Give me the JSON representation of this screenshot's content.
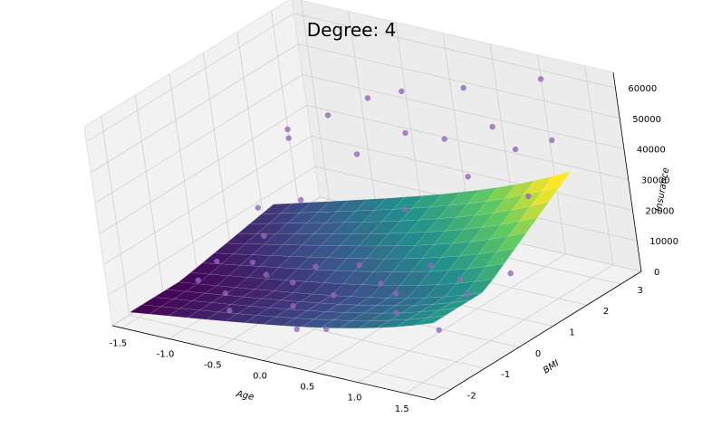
{
  "chart_data": {
    "type": "scatter",
    "subtype": "3d-scatter-with-polynomial-surface",
    "title": "Degree: 4",
    "xlabel": "Age",
    "ylabel": "BMI",
    "zlabel": "Insurance",
    "xlim": [
      -1.6,
      1.8
    ],
    "ylim": [
      -2.5,
      3.6
    ],
    "zlim": [
      0,
      65000
    ],
    "x_ticks": [
      "-1.5",
      "-1.0",
      "-0.5",
      "0.0",
      "0.5",
      "1.0",
      "1.5"
    ],
    "y_ticks": [
      "-2",
      "-1",
      "0",
      "1",
      "2",
      "3"
    ],
    "z_ticks": [
      "0",
      "10000",
      "20000",
      "30000",
      "40000",
      "50000",
      "60000"
    ],
    "x_tick_values": [
      -1.5,
      -1.0,
      -0.5,
      0.0,
      0.5,
      1.0,
      1.5
    ],
    "y_tick_values": [
      -2,
      -1,
      0,
      1,
      2,
      3
    ],
    "z_tick_values": [
      0,
      10000,
      20000,
      30000,
      40000,
      50000,
      60000
    ],
    "grid": true,
    "surface_colormap": "viridis",
    "point_color": "#9467bd",
    "points": [
      [
        -1.45,
        0.2,
        3500
      ],
      [
        -1.4,
        -0.5,
        2500
      ],
      [
        -1.3,
        1.2,
        6000
      ],
      [
        -1.2,
        0.9,
        18000
      ],
      [
        -1.2,
        2.0,
        36000
      ],
      [
        -1.1,
        0.3,
        5000
      ],
      [
        -1.0,
        1.5,
        38000
      ],
      [
        -1.0,
        -0.8,
        3200
      ],
      [
        -0.9,
        2.4,
        40000
      ],
      [
        -0.85,
        0.0,
        4800
      ],
      [
        -0.8,
        1.1,
        22000
      ],
      [
        -0.7,
        -1.5,
        4500
      ],
      [
        -0.6,
        2.8,
        45000
      ],
      [
        -0.5,
        0.5,
        6500
      ],
      [
        -0.45,
        -0.3,
        7200
      ],
      [
        -0.4,
        1.8,
        35000
      ],
      [
        -0.3,
        3.0,
        48000
      ],
      [
        -0.2,
        -1.0,
        6100
      ],
      [
        -0.1,
        0.7,
        8500
      ],
      [
        0.0,
        2.2,
        42000
      ],
      [
        0.1,
        -0.6,
        9000
      ],
      [
        0.2,
        1.4,
        24000
      ],
      [
        0.3,
        3.2,
        52000
      ],
      [
        0.35,
        0.1,
        9800
      ],
      [
        0.45,
        -1.8,
        8700
      ],
      [
        0.5,
        2.0,
        45000
      ],
      [
        0.6,
        0.9,
        12000
      ],
      [
        0.7,
        -0.4,
        12500
      ],
      [
        0.8,
        2.6,
        47000
      ],
      [
        0.9,
        1.5,
        39000
      ],
      [
        1.0,
        -1.2,
        13800
      ],
      [
        1.1,
        0.4,
        14500
      ],
      [
        1.2,
        3.1,
        62000
      ],
      [
        1.3,
        1.9,
        48000
      ],
      [
        1.4,
        -0.2,
        15800
      ],
      [
        1.5,
        0.8,
        16500
      ],
      [
        1.55,
        2.3,
        50000
      ],
      [
        1.6,
        -1.6,
        15200
      ],
      [
        1.65,
        1.2,
        40000
      ],
      [
        0.25,
        -2.1,
        9300
      ]
    ]
  }
}
